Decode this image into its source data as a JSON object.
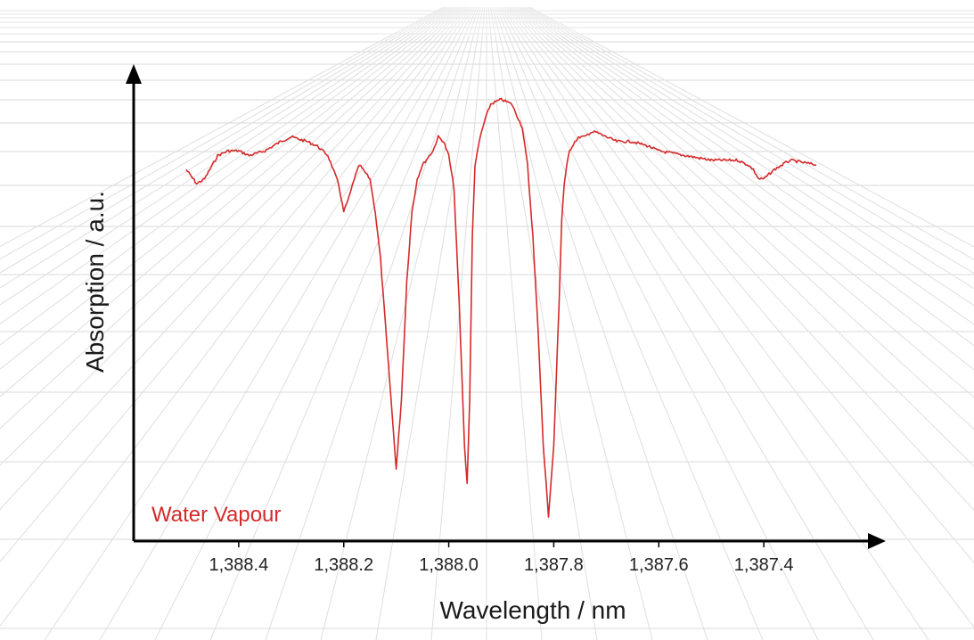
{
  "chart_data": {
    "type": "line",
    "title": "",
    "xlabel": "Wavelength / nm",
    "ylabel": "Absorption / a.u.",
    "x_axis_reversed": true,
    "xlim": [
      1388.6,
      1387.2
    ],
    "ylim": [
      0.0,
      1.0
    ],
    "x_ticks": [
      1388.4,
      1388.2,
      1388.0,
      1387.8,
      1387.6,
      1387.4
    ],
    "x_tick_labels": [
      "1,388.4",
      "1,388.2",
      "1,388.0",
      "1,387.8",
      "1,387.6",
      "1,387.4"
    ],
    "y_tick_labels": [],
    "grid": true,
    "legend": "none",
    "annotations": [
      {
        "text": "Water Vapour",
        "color": "#d42a2a"
      }
    ],
    "series": [
      {
        "color": "#d42a2a",
        "x": [
          1388.5,
          1388.48,
          1388.465,
          1388.45,
          1388.44,
          1388.42,
          1388.4,
          1388.38,
          1388.35,
          1388.32,
          1388.3,
          1388.27,
          1388.25,
          1388.23,
          1388.22,
          1388.21,
          1388.2,
          1388.19,
          1388.18,
          1388.17,
          1388.15,
          1388.14,
          1388.13,
          1388.12,
          1388.11,
          1388.1,
          1388.09,
          1388.08,
          1388.07,
          1388.06,
          1388.05,
          1388.03,
          1388.02,
          1388.01,
          1388.0,
          1387.99,
          1387.98,
          1387.97,
          1387.965,
          1387.96,
          1387.955,
          1387.95,
          1387.94,
          1387.93,
          1387.92,
          1387.9,
          1387.88,
          1387.86,
          1387.85,
          1387.84,
          1387.83,
          1387.82,
          1387.81,
          1387.8,
          1387.79,
          1387.785,
          1387.78,
          1387.775,
          1387.77,
          1387.76,
          1387.75,
          1387.74,
          1387.73,
          1387.72,
          1387.7,
          1387.68,
          1387.65,
          1387.62,
          1387.6,
          1387.55,
          1387.5,
          1387.45,
          1387.43,
          1387.42,
          1387.41,
          1387.4,
          1387.38,
          1387.35,
          1387.3
        ],
        "y": [
          0.79,
          0.76,
          0.77,
          0.8,
          0.82,
          0.83,
          0.83,
          0.82,
          0.83,
          0.85,
          0.86,
          0.85,
          0.84,
          0.82,
          0.79,
          0.76,
          0.7,
          0.73,
          0.77,
          0.8,
          0.77,
          0.7,
          0.6,
          0.45,
          0.3,
          0.15,
          0.3,
          0.55,
          0.7,
          0.77,
          0.8,
          0.83,
          0.86,
          0.85,
          0.82,
          0.75,
          0.5,
          0.2,
          0.12,
          0.3,
          0.65,
          0.8,
          0.86,
          0.9,
          0.93,
          0.94,
          0.93,
          0.88,
          0.8,
          0.65,
          0.45,
          0.2,
          0.05,
          0.2,
          0.5,
          0.68,
          0.76,
          0.8,
          0.83,
          0.85,
          0.86,
          0.86,
          0.87,
          0.87,
          0.86,
          0.85,
          0.85,
          0.84,
          0.83,
          0.82,
          0.81,
          0.81,
          0.8,
          0.79,
          0.77,
          0.77,
          0.79,
          0.81,
          0.8
        ]
      }
    ]
  }
}
